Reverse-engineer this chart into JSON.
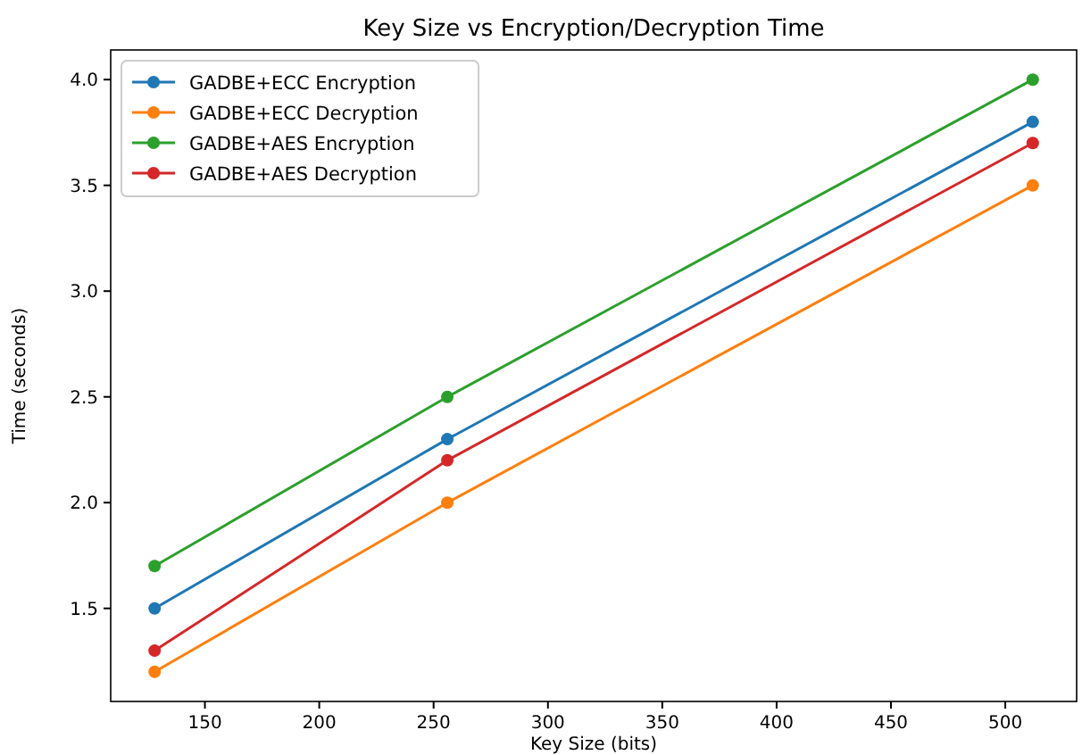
{
  "chart_data": {
    "type": "line",
    "title": "Key Size vs Encryption/Decryption Time",
    "xlabel": "Key Size (bits)",
    "ylabel": "Time (seconds)",
    "x": [
      128,
      256,
      512
    ],
    "series": [
      {
        "name": "GADBE+ECC Encryption",
        "color": "#1f77b4",
        "values": [
          1.5,
          2.3,
          3.8
        ]
      },
      {
        "name": "GADBE+ECC Decryption",
        "color": "#ff7f0e",
        "values": [
          1.2,
          2.0,
          3.5
        ]
      },
      {
        "name": "GADBE+AES Encryption",
        "color": "#2ca02c",
        "values": [
          1.7,
          2.5,
          4.0
        ]
      },
      {
        "name": "GADBE+AES Decryption",
        "color": "#d62728",
        "values": [
          1.3,
          2.2,
          3.7
        ]
      }
    ],
    "xlim": [
      108.8,
      531.2
    ],
    "xticks": [
      150,
      200,
      250,
      300,
      350,
      400,
      450,
      500
    ],
    "ylim": [
      1.06,
      4.14
    ],
    "yticks": [
      1.5,
      {
        "value": 2.0,
        "label": "2.0"
      },
      2.5,
      {
        "value": 3.0,
        "label": "3.0"
      },
      3.5,
      {
        "value": 4.0,
        "label": "4.0"
      }
    ],
    "marker": "circle",
    "line_style": "solid",
    "legend": "top left",
    "grid": false
  }
}
